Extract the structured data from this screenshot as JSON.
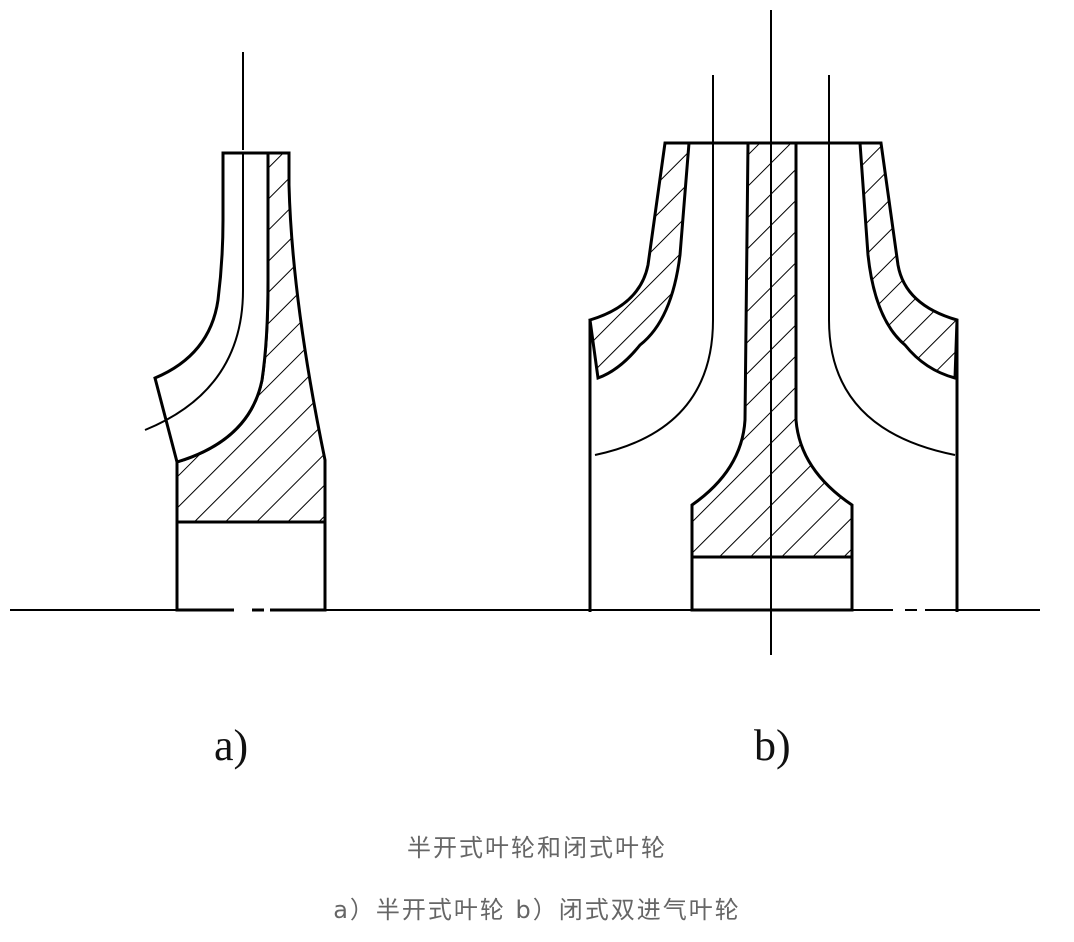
{
  "figure": {
    "label_a": "a)",
    "label_b": "b)"
  },
  "caption": {
    "title": "半开式叶轮和闭式叶轮",
    "subtitle": "a）半开式叶轮  b）闭式双进气叶轮"
  }
}
